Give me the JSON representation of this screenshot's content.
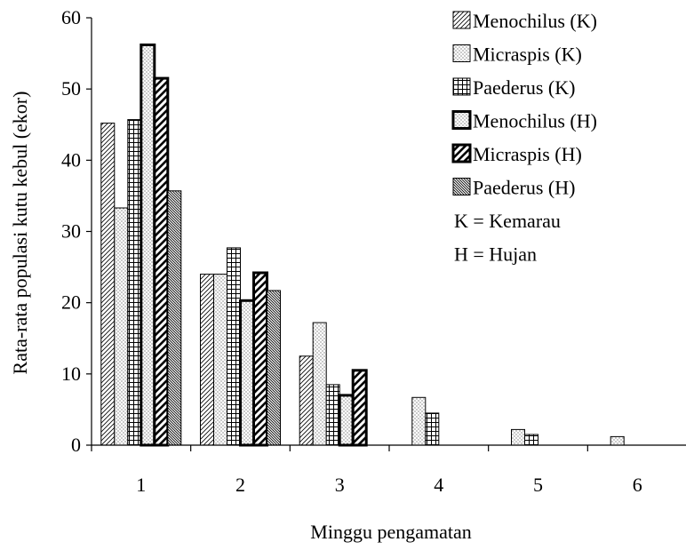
{
  "chart_data": {
    "type": "bar",
    "title": "",
    "xlabel": "Minggu pengamatan",
    "ylabel": "Rata-rata populasi kutu kebul (ekor)",
    "ylim": [
      0,
      60
    ],
    "yticks": [
      0,
      10,
      20,
      30,
      40,
      50,
      60
    ],
    "categories": [
      "1",
      "2",
      "3",
      "4",
      "5",
      "6"
    ],
    "legend_position": "top-right",
    "series": [
      {
        "name": "Menochilus (K)",
        "pattern": "diagonal-fine",
        "values": [
          45.2,
          24.0,
          12.5,
          0,
          0,
          0
        ]
      },
      {
        "name": "Micraspis (K)",
        "pattern": "dots",
        "values": [
          33.3,
          24.0,
          17.2,
          6.7,
          2.2,
          1.2
        ]
      },
      {
        "name": "Paederus (K)",
        "pattern": "grid",
        "values": [
          45.7,
          27.7,
          8.5,
          4.5,
          1.5,
          0
        ]
      },
      {
        "name": "Menochilus (H)",
        "pattern": "dots-bold",
        "values": [
          56.2,
          20.3,
          7.0,
          0,
          0,
          0
        ]
      },
      {
        "name": "Micraspis (H)",
        "pattern": "diagonal-bold",
        "values": [
          51.5,
          24.2,
          10.5,
          0,
          0,
          0
        ]
      },
      {
        "name": "Paederus (H)",
        "pattern": "diagonal-dense",
        "values": [
          35.7,
          21.7,
          0,
          0,
          0,
          0
        ]
      }
    ],
    "legend_notes": [
      "K = Kemarau",
      "H = Hujan"
    ]
  }
}
